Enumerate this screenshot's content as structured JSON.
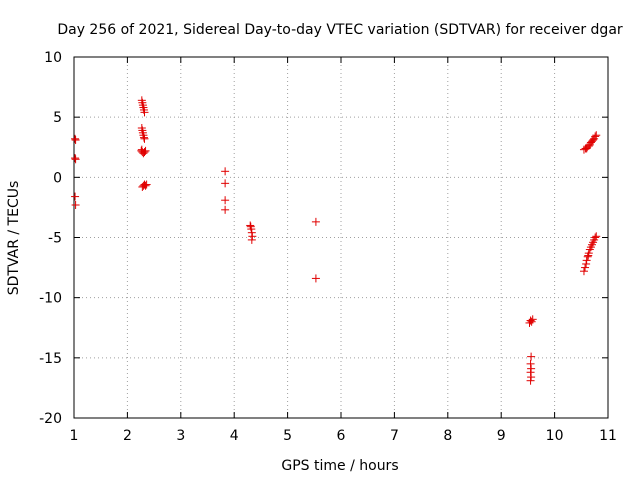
{
  "chart_data": {
    "type": "scatter",
    "title": "Day 256 of 2021, Sidereal Day-to-day VTEC variation (SDTVAR) for receiver dgar",
    "xlabel": "GPS time / hours",
    "ylabel": "SDTVAR / TECUs",
    "xlim": [
      1,
      11
    ],
    "ylim": [
      -20,
      10
    ],
    "x_ticks": [
      1,
      2,
      3,
      4,
      5,
      6,
      7,
      8,
      9,
      10,
      11
    ],
    "x_tick_labels": [
      "1",
      "2",
      "3",
      "4",
      "5",
      "6",
      "7",
      "8",
      "9",
      "10",
      "11"
    ],
    "y_ticks": [
      -20,
      -15,
      -10,
      -5,
      0,
      5,
      10
    ],
    "y_tick_labels": [
      "-20",
      "-15",
      "-10",
      "-5",
      "0",
      "5",
      "10"
    ],
    "grid": true,
    "legend": "none",
    "marker": "plus",
    "series": [
      {
        "name": "SDTVAR",
        "color": "#e00000",
        "points": [
          [
            1.02,
            3.2
          ],
          [
            1.03,
            3.1
          ],
          [
            1.02,
            1.6
          ],
          [
            1.03,
            1.5
          ],
          [
            1.02,
            -1.6
          ],
          [
            1.03,
            -2.3
          ],
          [
            2.27,
            6.4
          ],
          [
            2.28,
            6.2
          ],
          [
            2.29,
            6.0
          ],
          [
            2.3,
            5.8
          ],
          [
            2.31,
            5.6
          ],
          [
            2.32,
            5.4
          ],
          [
            2.27,
            4.1
          ],
          [
            2.28,
            3.9
          ],
          [
            2.29,
            3.7
          ],
          [
            2.3,
            3.5
          ],
          [
            2.31,
            3.3
          ],
          [
            2.32,
            3.2
          ],
          [
            2.26,
            2.2
          ],
          [
            2.28,
            2.1
          ],
          [
            2.3,
            2.0
          ],
          [
            2.32,
            2.1
          ],
          [
            2.34,
            2.2
          ],
          [
            2.27,
            2.3
          ],
          [
            2.28,
            -0.8
          ],
          [
            2.3,
            -0.7
          ],
          [
            2.32,
            -0.6
          ],
          [
            2.34,
            -0.7
          ],
          [
            2.36,
            -0.6
          ],
          [
            3.83,
            0.5
          ],
          [
            3.83,
            -0.5
          ],
          [
            3.83,
            -1.9
          ],
          [
            3.83,
            -2.7
          ],
          [
            4.3,
            -4.0
          ],
          [
            4.32,
            -4.3
          ],
          [
            4.33,
            -4.6
          ],
          [
            4.34,
            -4.9
          ],
          [
            4.33,
            -5.2
          ],
          [
            4.31,
            -4.1
          ],
          [
            5.53,
            -3.7
          ],
          [
            5.53,
            -8.4
          ],
          [
            9.53,
            -12.1
          ],
          [
            9.55,
            -11.9
          ],
          [
            9.57,
            -12.0
          ],
          [
            9.59,
            -11.8
          ],
          [
            9.56,
            -14.9
          ],
          [
            9.55,
            -15.5
          ],
          [
            9.56,
            -15.9
          ],
          [
            9.55,
            -16.2
          ],
          [
            9.56,
            -16.6
          ],
          [
            9.55,
            -16.9
          ],
          [
            10.55,
            2.3
          ],
          [
            10.58,
            2.4
          ],
          [
            10.61,
            2.5
          ],
          [
            10.64,
            2.6
          ],
          [
            10.66,
            2.7
          ],
          [
            10.68,
            2.9
          ],
          [
            10.7,
            3.0
          ],
          [
            10.72,
            3.1
          ],
          [
            10.74,
            3.2
          ],
          [
            10.76,
            3.4
          ],
          [
            10.78,
            3.5
          ],
          [
            10.6,
            2.4
          ],
          [
            10.55,
            -7.8
          ],
          [
            10.57,
            -7.5
          ],
          [
            10.59,
            -7.2
          ],
          [
            10.6,
            -6.9
          ],
          [
            10.62,
            -6.6
          ],
          [
            10.64,
            -6.3
          ],
          [
            10.66,
            -6.0
          ],
          [
            10.68,
            -5.8
          ],
          [
            10.7,
            -5.6
          ],
          [
            10.72,
            -5.4
          ],
          [
            10.74,
            -5.2
          ],
          [
            10.76,
            -5.0
          ],
          [
            10.78,
            -4.9
          ],
          [
            10.63,
            -6.5
          ]
        ]
      }
    ]
  }
}
